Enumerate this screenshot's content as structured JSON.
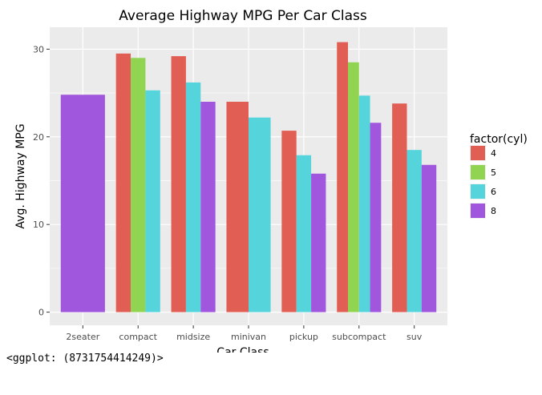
{
  "chart_data": {
    "type": "bar",
    "title": "Average Highway MPG Per Car Class",
    "xlabel": "Car Class",
    "ylabel": "Avg. Highway MPG",
    "ylim": [
      -1.5,
      32.5
    ],
    "yticks": [
      0,
      10,
      20,
      30
    ],
    "grid": true,
    "legend_position": "right",
    "legend_title": "factor(cyl)",
    "categories": [
      "2seater",
      "compact",
      "midsize",
      "minivan",
      "pickup",
      "subcompact",
      "suv"
    ],
    "series": [
      {
        "name": "4",
        "color": "#E15E55",
        "values": [
          null,
          29.5,
          29.2,
          24.0,
          20.7,
          30.8,
          23.8
        ]
      },
      {
        "name": "5",
        "color": "#90D452",
        "values": [
          null,
          29.0,
          null,
          null,
          null,
          28.5,
          null
        ]
      },
      {
        "name": "6",
        "color": "#56D4DC",
        "values": [
          null,
          25.3,
          26.2,
          22.2,
          17.9,
          24.7,
          18.5
        ]
      },
      {
        "name": "8",
        "color": "#A156DE",
        "values": [
          24.8,
          null,
          24.0,
          null,
          15.8,
          21.6,
          16.8
        ]
      }
    ]
  },
  "caption": "<ggplot: (8731754414249)>"
}
